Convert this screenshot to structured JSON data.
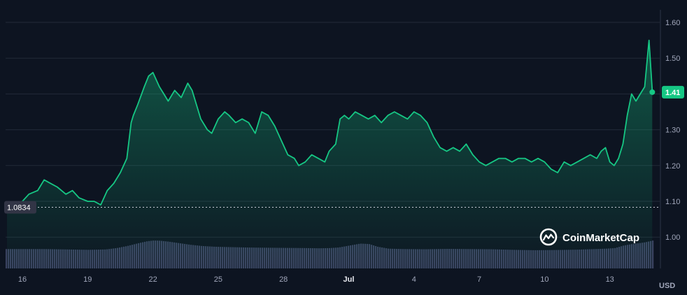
{
  "chart_data": {
    "type": "area",
    "unit_label": "USD",
    "brand": "CoinMarketCap",
    "ylim": [
      0.92,
      1.63
    ],
    "y_ticks": [
      "1.60",
      "1.50",
      "1.40",
      "1.30",
      "1.20",
      "1.10",
      "1.00"
    ],
    "y_tick_values": [
      1.6,
      1.5,
      1.4,
      1.3,
      1.2,
      1.1,
      1.0
    ],
    "x_ticks": [
      "16",
      "19",
      "22",
      "25",
      "28",
      "Jul",
      "4",
      "7",
      "10",
      "13"
    ],
    "x_tick_bold": [
      "Jul"
    ],
    "reference_line": {
      "value": 1.0834,
      "label": "1.0834"
    },
    "current_value": {
      "value": 1.405,
      "label": "1.41"
    },
    "price_series": {
      "name": "",
      "x_day": [
        16.0,
        16.3,
        16.7,
        17.0,
        17.3,
        17.6,
        18.0,
        18.3,
        18.6,
        19.0,
        19.3,
        19.6,
        19.9,
        20.2,
        20.5,
        20.8,
        21.0,
        21.1,
        21.3,
        21.6,
        21.8,
        22.0,
        22.3,
        22.5,
        22.7,
        23.0,
        23.3,
        23.6,
        23.8,
        24.0,
        24.2,
        24.5,
        24.7,
        25.0,
        25.3,
        25.5,
        25.8,
        26.1,
        26.4,
        26.7,
        27.0,
        27.3,
        27.6,
        27.9,
        28.2,
        28.5,
        28.7,
        29.0,
        29.3,
        29.6,
        29.9,
        30.1,
        30.4,
        30.6,
        30.8,
        31.0,
        31.3,
        31.6,
        31.9,
        32.2,
        32.5,
        32.8,
        33.1,
        33.4,
        33.7,
        34.0,
        34.3,
        34.6,
        34.9,
        35.2,
        35.5,
        35.8,
        36.1,
        36.4,
        36.7,
        37.0,
        37.3,
        37.6,
        37.9,
        38.2,
        38.5,
        38.8,
        39.1,
        39.4,
        39.7,
        40.0,
        40.3,
        40.6,
        40.9,
        41.2,
        41.5,
        41.8,
        42.1,
        42.4,
        42.6,
        42.8,
        43.0,
        43.2,
        43.4,
        43.6,
        43.8,
        44.0,
        44.2,
        44.4,
        44.6,
        44.8,
        44.95
      ],
      "values": [
        1.1,
        1.12,
        1.13,
        1.16,
        1.15,
        1.14,
        1.12,
        1.13,
        1.11,
        1.1,
        1.1,
        1.09,
        1.13,
        1.15,
        1.18,
        1.22,
        1.32,
        1.34,
        1.37,
        1.42,
        1.45,
        1.46,
        1.42,
        1.4,
        1.38,
        1.41,
        1.39,
        1.43,
        1.41,
        1.37,
        1.33,
        1.3,
        1.29,
        1.33,
        1.35,
        1.34,
        1.32,
        1.33,
        1.32,
        1.29,
        1.35,
        1.34,
        1.31,
        1.27,
        1.23,
        1.22,
        1.2,
        1.21,
        1.23,
        1.22,
        1.21,
        1.24,
        1.26,
        1.33,
        1.34,
        1.33,
        1.35,
        1.34,
        1.33,
        1.34,
        1.32,
        1.34,
        1.35,
        1.34,
        1.33,
        1.35,
        1.34,
        1.32,
        1.28,
        1.25,
        1.24,
        1.25,
        1.24,
        1.26,
        1.23,
        1.21,
        1.2,
        1.21,
        1.22,
        1.22,
        1.21,
        1.22,
        1.22,
        1.21,
        1.22,
        1.21,
        1.19,
        1.18,
        1.21,
        1.2,
        1.21,
        1.22,
        1.23,
        1.22,
        1.24,
        1.25,
        1.21,
        1.2,
        1.22,
        1.26,
        1.34,
        1.4,
        1.38,
        1.4,
        1.42,
        1.55,
        1.41
      ]
    },
    "volume_series": {
      "name": "",
      "x_day": [
        16.0,
        17.0,
        18.0,
        19.0,
        19.8,
        20.3,
        20.8,
        21.3,
        21.7,
        22.0,
        22.3,
        22.7,
        23.2,
        23.7,
        24.2,
        24.8,
        25.5,
        26.3,
        27.0,
        28.0,
        29.0,
        29.6,
        30.1,
        30.5,
        31.0,
        31.5,
        31.9,
        32.3,
        32.8,
        33.5,
        34.5,
        35.5,
        36.5,
        37.5,
        38.5,
        39.5,
        40.5,
        41.5,
        42.3,
        42.8,
        43.2,
        43.6,
        44.0,
        44.3,
        44.6,
        44.95
      ],
      "values": [
        1.0,
        1.0,
        0.98,
        0.96,
        0.98,
        1.05,
        1.16,
        1.3,
        1.4,
        1.44,
        1.43,
        1.38,
        1.3,
        1.22,
        1.16,
        1.12,
        1.1,
        1.08,
        1.07,
        1.06,
        1.05,
        1.04,
        1.05,
        1.08,
        1.18,
        1.28,
        1.26,
        1.12,
        1.02,
        1.0,
        0.99,
        1.01,
        1.0,
        0.99,
        0.96,
        0.94,
        0.95,
        0.97,
        1.0,
        1.02,
        1.05,
        1.18,
        1.26,
        1.3,
        1.35,
        1.44
      ]
    }
  },
  "colors": {
    "background": "#0d1421",
    "line": "#16c784",
    "grid": "#222a39",
    "volume": "#3b4361",
    "badge": "#16c784",
    "reference_badge": "#323546"
  }
}
